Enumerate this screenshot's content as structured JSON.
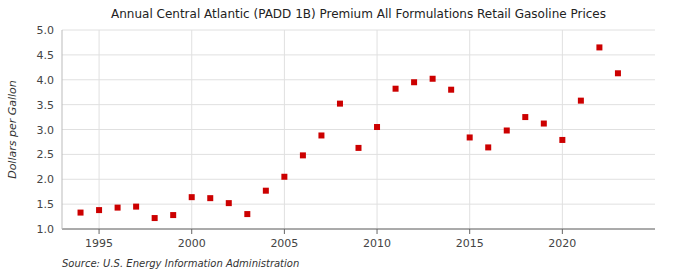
{
  "chart_data": {
    "type": "scatter",
    "title": "Annual Central Atlantic (PADD 1B) Premium All Formulations Retail Gasoline Prices",
    "ylabel": "Dollars per Gallon",
    "annotations": [
      "Source: U.S. Energy Information Administration"
    ],
    "color": "#cc0000",
    "marker": "square",
    "grid": true,
    "xlim": [
      1993,
      2025
    ],
    "ylim": [
      1.0,
      5.0
    ],
    "xticks": [
      1995,
      2000,
      2005,
      2010,
      2015,
      2020
    ],
    "yticks": [
      {
        "value": 1.0,
        "label": "1.0"
      },
      1.5,
      {
        "value": 2.0,
        "label": "2.0"
      },
      2.5,
      {
        "value": 3.0,
        "label": "3.0"
      },
      3.5,
      {
        "value": 4.0,
        "label": "4.0"
      },
      4.5,
      {
        "value": 5.0,
        "label": "5.0"
      }
    ],
    "x": [
      1994,
      1995,
      1996,
      1997,
      1998,
      1999,
      2000,
      2001,
      2002,
      2003,
      2004,
      2005,
      2006,
      2007,
      2008,
      2009,
      2010,
      2011,
      2012,
      2013,
      2014,
      2015,
      2016,
      2017,
      2018,
      2019,
      2020,
      2021,
      2022,
      2023
    ],
    "values": [
      1.33,
      1.38,
      1.43,
      1.45,
      1.22,
      1.28,
      1.64,
      1.62,
      1.52,
      1.3,
      1.77,
      2.05,
      2.48,
      2.88,
      3.52,
      2.63,
      3.05,
      3.82,
      3.95,
      4.02,
      3.8,
      2.84,
      2.64,
      2.98,
      3.25,
      3.12,
      2.79,
      3.58,
      4.65,
      4.13
    ]
  }
}
